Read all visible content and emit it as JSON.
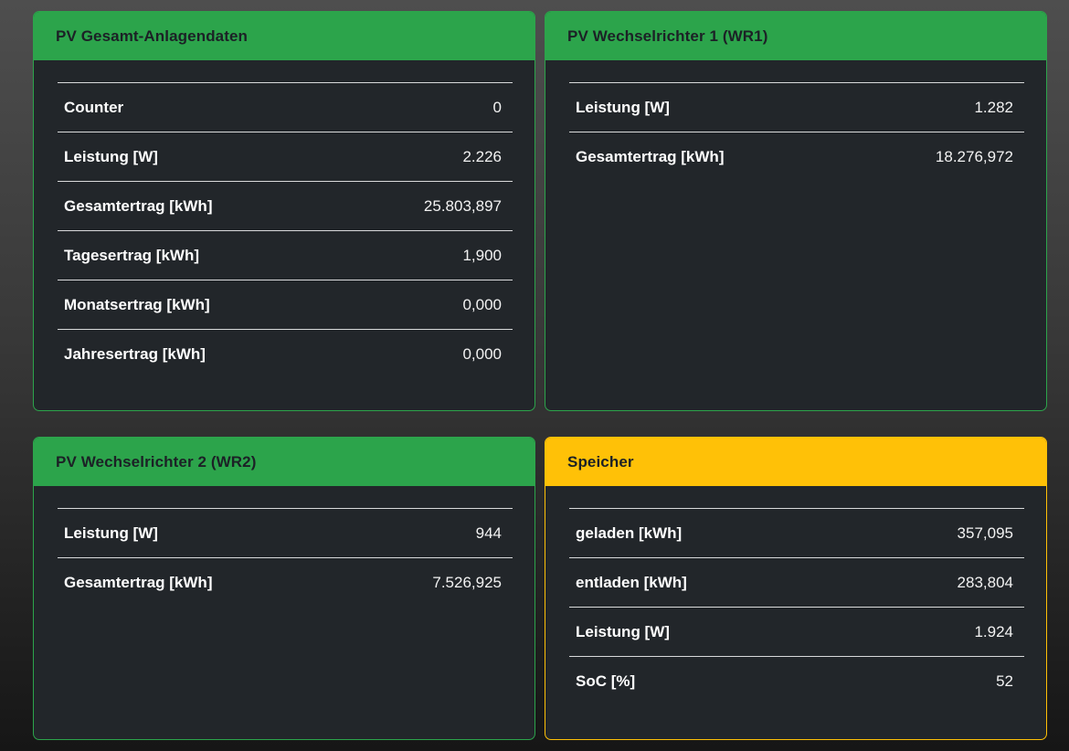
{
  "colors": {
    "pv_accent_green": "#2ca44b",
    "storage_accent_yellow": "#ffc107",
    "card_background": "#22262a",
    "header_text": "#1c2126",
    "row_text": "#ffffff"
  },
  "cards": [
    {
      "title": "PV Gesamt-Anlagendaten",
      "accent": "#2ca44b",
      "rows": [
        {
          "label": "Counter",
          "value": "0"
        },
        {
          "label": "Leistung [W]",
          "value": "2.226"
        },
        {
          "label": "Gesamtertrag [kWh]",
          "value": "25.803,897"
        },
        {
          "label": "Tagesertrag [kWh]",
          "value": "1,900"
        },
        {
          "label": "Monatsertrag [kWh]",
          "value": "0,000"
        },
        {
          "label": "Jahresertrag [kWh]",
          "value": "0,000"
        }
      ]
    },
    {
      "title": "PV Wechselrichter 1 (WR1)",
      "accent": "#2ca44b",
      "rows": [
        {
          "label": "Leistung [W]",
          "value": "1.282"
        },
        {
          "label": "Gesamtertrag [kWh]",
          "value": "18.276,972"
        }
      ]
    },
    {
      "title": "PV Wechselrichter 2 (WR2)",
      "accent": "#2ca44b",
      "rows": [
        {
          "label": "Leistung [W]",
          "value": "944"
        },
        {
          "label": "Gesamtertrag [kWh]",
          "value": "7.526,925"
        }
      ]
    },
    {
      "title": "Speicher",
      "accent": "#ffc107",
      "rows": [
        {
          "label": "geladen [kWh]",
          "value": "357,095"
        },
        {
          "label": "entladen [kWh]",
          "value": "283,804"
        },
        {
          "label": "Leistung [W]",
          "value": "1.924"
        },
        {
          "label": "SoC [%]",
          "value": "52"
        }
      ]
    }
  ]
}
